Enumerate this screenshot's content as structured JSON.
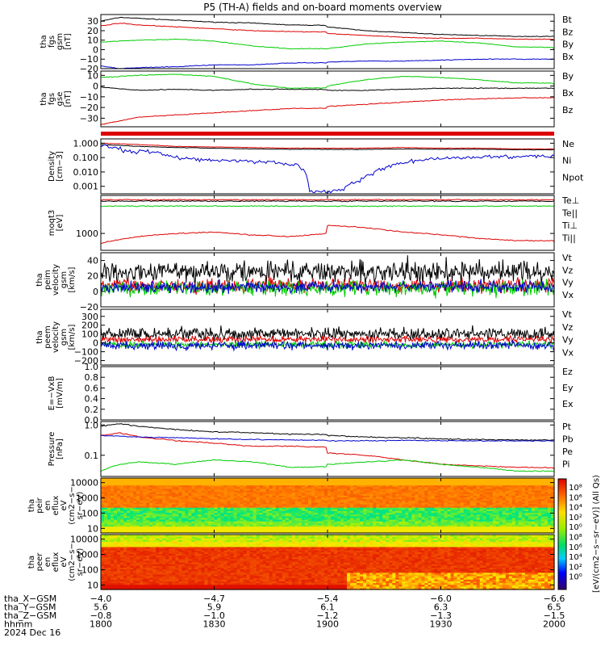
{
  "title": "P5 (TH-A) fields and on-board moments overview",
  "colors": {
    "black": "#000000",
    "red": "#dd0000",
    "green": "#00cc00",
    "blue": "#0000cc"
  },
  "chart_data": [
    {
      "type": "line",
      "id": "fgs",
      "ylabel": [
        "tha",
        "fgs",
        "gsm",
        "[nT]"
      ],
      "ylim": [
        -20,
        37
      ],
      "yticks": [
        "30",
        "20",
        "10",
        "0",
        "−10",
        "−20"
      ],
      "ytick_values": [
        30,
        20,
        10,
        0,
        -10,
        -20
      ],
      "series": [
        {
          "name": "Bt",
          "color": "#000000",
          "x": [
            1800,
            1805,
            1810,
            1820,
            1830,
            1840,
            1850,
            1900,
            1910,
            1920,
            1930,
            1940,
            1950,
            2000
          ],
          "y": [
            30,
            34,
            33,
            31,
            29,
            28,
            26,
            24,
            20,
            18,
            16,
            15,
            14,
            14
          ]
        },
        {
          "name": "Bz",
          "color": "#dd0000",
          "x": [
            1800,
            1805,
            1810,
            1820,
            1830,
            1840,
            1850,
            1900,
            1910,
            1920,
            1930,
            1940,
            1950,
            2000
          ],
          "y": [
            25,
            28,
            26,
            24,
            22,
            20,
            19,
            17,
            15,
            13,
            12,
            12,
            11,
            10
          ]
        },
        {
          "name": "By",
          "color": "#00cc00",
          "x": [
            1800,
            1805,
            1810,
            1820,
            1830,
            1840,
            1850,
            1900,
            1910,
            1920,
            1930,
            1940,
            1950,
            2000
          ],
          "y": [
            8,
            9,
            10,
            11,
            9,
            4,
            1,
            1,
            6,
            8,
            9,
            7,
            3,
            0
          ]
        },
        {
          "name": "Bx",
          "color": "#0000cc",
          "x": [
            1800,
            1805,
            1810,
            1820,
            1830,
            1840,
            1850,
            1900,
            1910,
            1920,
            1930,
            1940,
            1950,
            2000
          ],
          "y": [
            -17,
            -20,
            -19,
            -18,
            -16,
            -16,
            -14,
            -13,
            -12,
            -12,
            -11,
            -10,
            -10,
            -10
          ]
        }
      ]
    },
    {
      "type": "line",
      "id": "fgs_dsl",
      "ylabel": [
        "tha",
        "fgs",
        "gse",
        "[nT]"
      ],
      "ylim": [
        -38,
        14
      ],
      "yticks": [
        "10",
        "0",
        "−10",
        "−20",
        "−30"
      ],
      "ytick_values": [
        10,
        0,
        -10,
        -20,
        -30
      ],
      "series": [
        {
          "name": "By",
          "color": "#00cc00",
          "x": [
            1800,
            1810,
            1820,
            1830,
            1840,
            1850,
            1900,
            1910,
            1920,
            1930,
            1940,
            1950,
            2000
          ],
          "y": [
            8,
            10,
            11,
            9,
            2,
            -2,
            0,
            6,
            9,
            8,
            6,
            3,
            1
          ]
        },
        {
          "name": "Bx",
          "color": "#000000",
          "x": [
            1800,
            1810,
            1820,
            1830,
            1840,
            1850,
            1900,
            1910,
            1920,
            1930,
            1940,
            1950,
            2000
          ],
          "y": [
            -1,
            -4,
            -3,
            -4,
            -3,
            -3,
            -4,
            -4,
            -3,
            -2,
            -2,
            -2,
            -2
          ]
        },
        {
          "name": "Bz",
          "color": "#dd0000",
          "x": [
            1800,
            1810,
            1820,
            1830,
            1840,
            1850,
            1900,
            1910,
            1920,
            1930,
            1940,
            1950,
            2000
          ],
          "y": [
            -36,
            -29,
            -27,
            -25,
            -23,
            -21,
            -19,
            -17,
            -15,
            -13,
            -12,
            -11,
            -10
          ]
        }
      ]
    },
    {
      "type": "line",
      "id": "density",
      "ylabel": [
        "Density",
        "[cm−3]"
      ],
      "yscale": "log",
      "ylim": [
        0.0003,
        2
      ],
      "yticks": [
        "1.000",
        "0.100",
        "0.010",
        "0.001"
      ],
      "ytick_values": [
        1,
        0.1,
        0.01,
        0.001
      ],
      "series": [
        {
          "name": "Ne",
          "color": "#dd0000",
          "x": [
            1800,
            1810,
            1820,
            1830,
            1840,
            1850,
            1900,
            1910,
            1920,
            1930,
            1940,
            1950,
            2000
          ],
          "y": [
            1.0,
            0.8,
            0.6,
            0.55,
            0.5,
            0.45,
            0.45,
            0.45,
            0.5,
            0.45,
            0.45,
            0.4,
            0.4
          ]
        },
        {
          "name": "Ni",
          "color": "#000000",
          "x": [
            1800,
            1810,
            1820,
            1830,
            1840,
            1850,
            1900,
            1910,
            1920,
            1930,
            1940,
            1950,
            2000
          ],
          "y": [
            0.8,
            0.6,
            0.5,
            0.45,
            0.4,
            0.38,
            0.37,
            0.37,
            0.4,
            0.38,
            0.38,
            0.35,
            0.35
          ]
        },
        {
          "name": "Npot",
          "color": "#0000cc",
          "x": [
            1800,
            1803,
            1808,
            1812,
            1818,
            1825,
            1835,
            1845,
            1852,
            1855,
            1857,
            1900,
            1904,
            1908,
            1912,
            1918,
            1925,
            1935,
            1945,
            1955,
            2000
          ],
          "y": [
            0.7,
            0.5,
            0.25,
            0.3,
            0.12,
            0.08,
            0.06,
            0.05,
            0.03,
            0.0005,
            0.0004,
            0.0004,
            0.0006,
            0.002,
            0.008,
            0.03,
            0.07,
            0.1,
            0.12,
            0.13,
            0.13
          ]
        }
      ]
    },
    {
      "type": "line",
      "id": "temperature",
      "ylabel": [
        "moqt3",
        "[eV]"
      ],
      "yscale": "log",
      "ylim": [
        300,
        15000
      ],
      "yticks": [
        "1000"
      ],
      "ytick_values": [
        1000
      ],
      "series": [
        {
          "name": "Te⊥",
          "color": "#dd0000",
          "x": [
            1800,
            2000
          ],
          "y": [
            11000,
            11000
          ]
        },
        {
          "name": "Te||",
          "color": "#000000",
          "x": [
            1800,
            2000
          ],
          "y": [
            10000,
            10000
          ]
        },
        {
          "name": "Ti⊥",
          "color": "#dd0000",
          "x": [
            1800,
            1810,
            1820,
            1830,
            1840,
            1850,
            1900,
            1910,
            1920,
            1930,
            1940,
            1950,
            2000
          ],
          "y": [
            500,
            800,
            1000,
            1100,
            900,
            800,
            1800,
            1500,
            1100,
            900,
            700,
            600,
            550
          ]
        },
        {
          "name": "Ti||",
          "color": "#00cc00",
          "x": [
            1800,
            2000
          ],
          "y": [
            7000,
            7000
          ]
        }
      ]
    },
    {
      "type": "line",
      "id": "peim_vel",
      "ylabel": [
        "tha",
        "peim",
        "velocity",
        "gsm",
        "[km/s]"
      ],
      "ylim": [
        -20,
        50
      ],
      "yticks": [
        "40",
        "20",
        "0",
        "−20"
      ],
      "ytick_values": [
        40,
        20,
        0,
        -20
      ],
      "series": [
        {
          "name": "Vt",
          "color": "#000000"
        },
        {
          "name": "Vz",
          "color": "#dd0000"
        },
        {
          "name": "Vy",
          "color": "#00cc00"
        },
        {
          "name": "Vx",
          "color": "#0000cc"
        }
      ]
    },
    {
      "type": "line",
      "id": "peem_vel",
      "ylabel": [
        "tha",
        "peem",
        "velocity",
        "gsm",
        "[km/s]"
      ],
      "ylim": [
        -250,
        380
      ],
      "yticks": [
        "300",
        "200",
        "100",
        "0",
        "−100",
        "−200"
      ],
      "ytick_values": [
        300,
        200,
        100,
        0,
        -100,
        -200
      ],
      "series": [
        {
          "name": "Vt",
          "color": "#000000"
        },
        {
          "name": "Vz",
          "color": "#dd0000"
        },
        {
          "name": "Vy",
          "color": "#00cc00"
        },
        {
          "name": "Vx",
          "color": "#0000cc"
        }
      ]
    },
    {
      "type": "line",
      "id": "efield",
      "ylabel": [
        "E=−VxB",
        "[mV/m]"
      ],
      "ylim": [
        0,
        1
      ],
      "yticks": [
        "1.0",
        "0.8",
        "0.6",
        "0.4",
        "0.2",
        "0.0"
      ],
      "ytick_values": [
        1,
        0.8,
        0.6,
        0.4,
        0.2,
        0
      ],
      "series": [
        {
          "name": "Ez",
          "color": "#dd0000"
        },
        {
          "name": "Ey",
          "color": "#00cc00"
        },
        {
          "name": "Ex",
          "color": "#0000cc"
        }
      ]
    },
    {
      "type": "line",
      "id": "pressure",
      "ylabel": [
        "Pressure",
        "[nPa]"
      ],
      "yscale": "log",
      "ylim": [
        0.02,
        1.3
      ],
      "yticks": [
        "1.0",
        "0.1"
      ],
      "ytick_values": [
        1,
        0.1
      ],
      "series": [
        {
          "name": "Pt",
          "color": "#000000",
          "x": [
            1800,
            1805,
            1810,
            1820,
            1830,
            1840,
            1850,
            1900,
            1910,
            1920,
            1930,
            1940,
            1950,
            2000
          ],
          "y": [
            0.9,
            1.1,
            0.9,
            0.7,
            0.6,
            0.55,
            0.5,
            0.45,
            0.4,
            0.38,
            0.35,
            0.33,
            0.32,
            0.32
          ]
        },
        {
          "name": "Pb",
          "color": "#dd0000",
          "x": [
            1800,
            1805,
            1810,
            1820,
            1830,
            1840,
            1850,
            1900,
            1910,
            1920,
            1930,
            1940,
            1950,
            2000
          ],
          "y": [
            0.45,
            0.55,
            0.4,
            0.3,
            0.25,
            0.2,
            0.2,
            0.12,
            0.1,
            0.07,
            0.05,
            0.045,
            0.04,
            0.035
          ]
        },
        {
          "name": "Pe",
          "color": "#00cc00",
          "x": [
            1800,
            1805,
            1810,
            1820,
            1830,
            1840,
            1850,
            1900,
            1910,
            1920,
            1930,
            1940,
            1950,
            2000
          ],
          "y": [
            0.03,
            0.05,
            0.06,
            0.05,
            0.07,
            0.06,
            0.04,
            0.05,
            0.06,
            0.07,
            0.05,
            0.04,
            0.03,
            0.03
          ]
        },
        {
          "name": "Pi",
          "color": "#0000cc",
          "x": [
            1800,
            1810,
            1820,
            1830,
            1840,
            1850,
            1900,
            1910,
            1920,
            1930,
            1940,
            1950,
            2000
          ],
          "y": [
            0.45,
            0.4,
            0.38,
            0.35,
            0.33,
            0.32,
            0.3,
            0.3,
            0.31,
            0.3,
            0.3,
            0.3,
            0.3
          ]
        }
      ]
    },
    {
      "type": "heatmap",
      "id": "peir",
      "ylabel": [
        "tha",
        "peir",
        "en",
        "eflux",
        "eV",
        "(cm2−s−",
        "sr−eV)"
      ],
      "yscale": "log",
      "ylim": [
        5,
        20000
      ],
      "yticks": [
        "10000",
        "1000",
        "100",
        "10"
      ],
      "ytick_values": [
        10000,
        1000,
        100,
        10
      ]
    },
    {
      "type": "heatmap",
      "id": "peer",
      "ylabel": [
        "tha",
        "peer",
        "en",
        "eflux",
        "eV",
        "(cm2−s−",
        "sr−eV)"
      ],
      "yscale": "log",
      "ylim": [
        5,
        20000
      ],
      "yticks": [
        "10000",
        "1000",
        "100",
        "10"
      ],
      "ytick_values": [
        10000,
        1000,
        100,
        10
      ]
    }
  ],
  "colorbar": {
    "label": "[eV/(cm2−s−sr−eV)] (All Qs)",
    "ticks": [
      "10⁸",
      "10⁶",
      "10⁴",
      "10²",
      "10⁰",
      "10⁸",
      "10⁶",
      "10⁴",
      "10²",
      "10⁰"
    ]
  },
  "xaxis": {
    "rows": [
      {
        "label": "tha_X−GSM",
        "values": [
          "−4.0",
          "−4.7",
          "−5.4",
          "−6.0",
          "−6.6"
        ]
      },
      {
        "label": "tha_Y−GSM",
        "values": [
          "5.6",
          "5.9",
          "6.1",
          "6.3",
          "6.5"
        ]
      },
      {
        "label": "tha_Z−GSM",
        "values": [
          "−0.8",
          "−1.0",
          "−1.2",
          "−1.3",
          "−1.5"
        ]
      },
      {
        "label": "hhmm",
        "values": [
          "1800",
          "1830",
          "1900",
          "1930",
          "2000"
        ]
      }
    ],
    "date": "2024 Dec 16",
    "tick_times": [
      1800,
      1830,
      1900,
      1930,
      2000
    ]
  }
}
